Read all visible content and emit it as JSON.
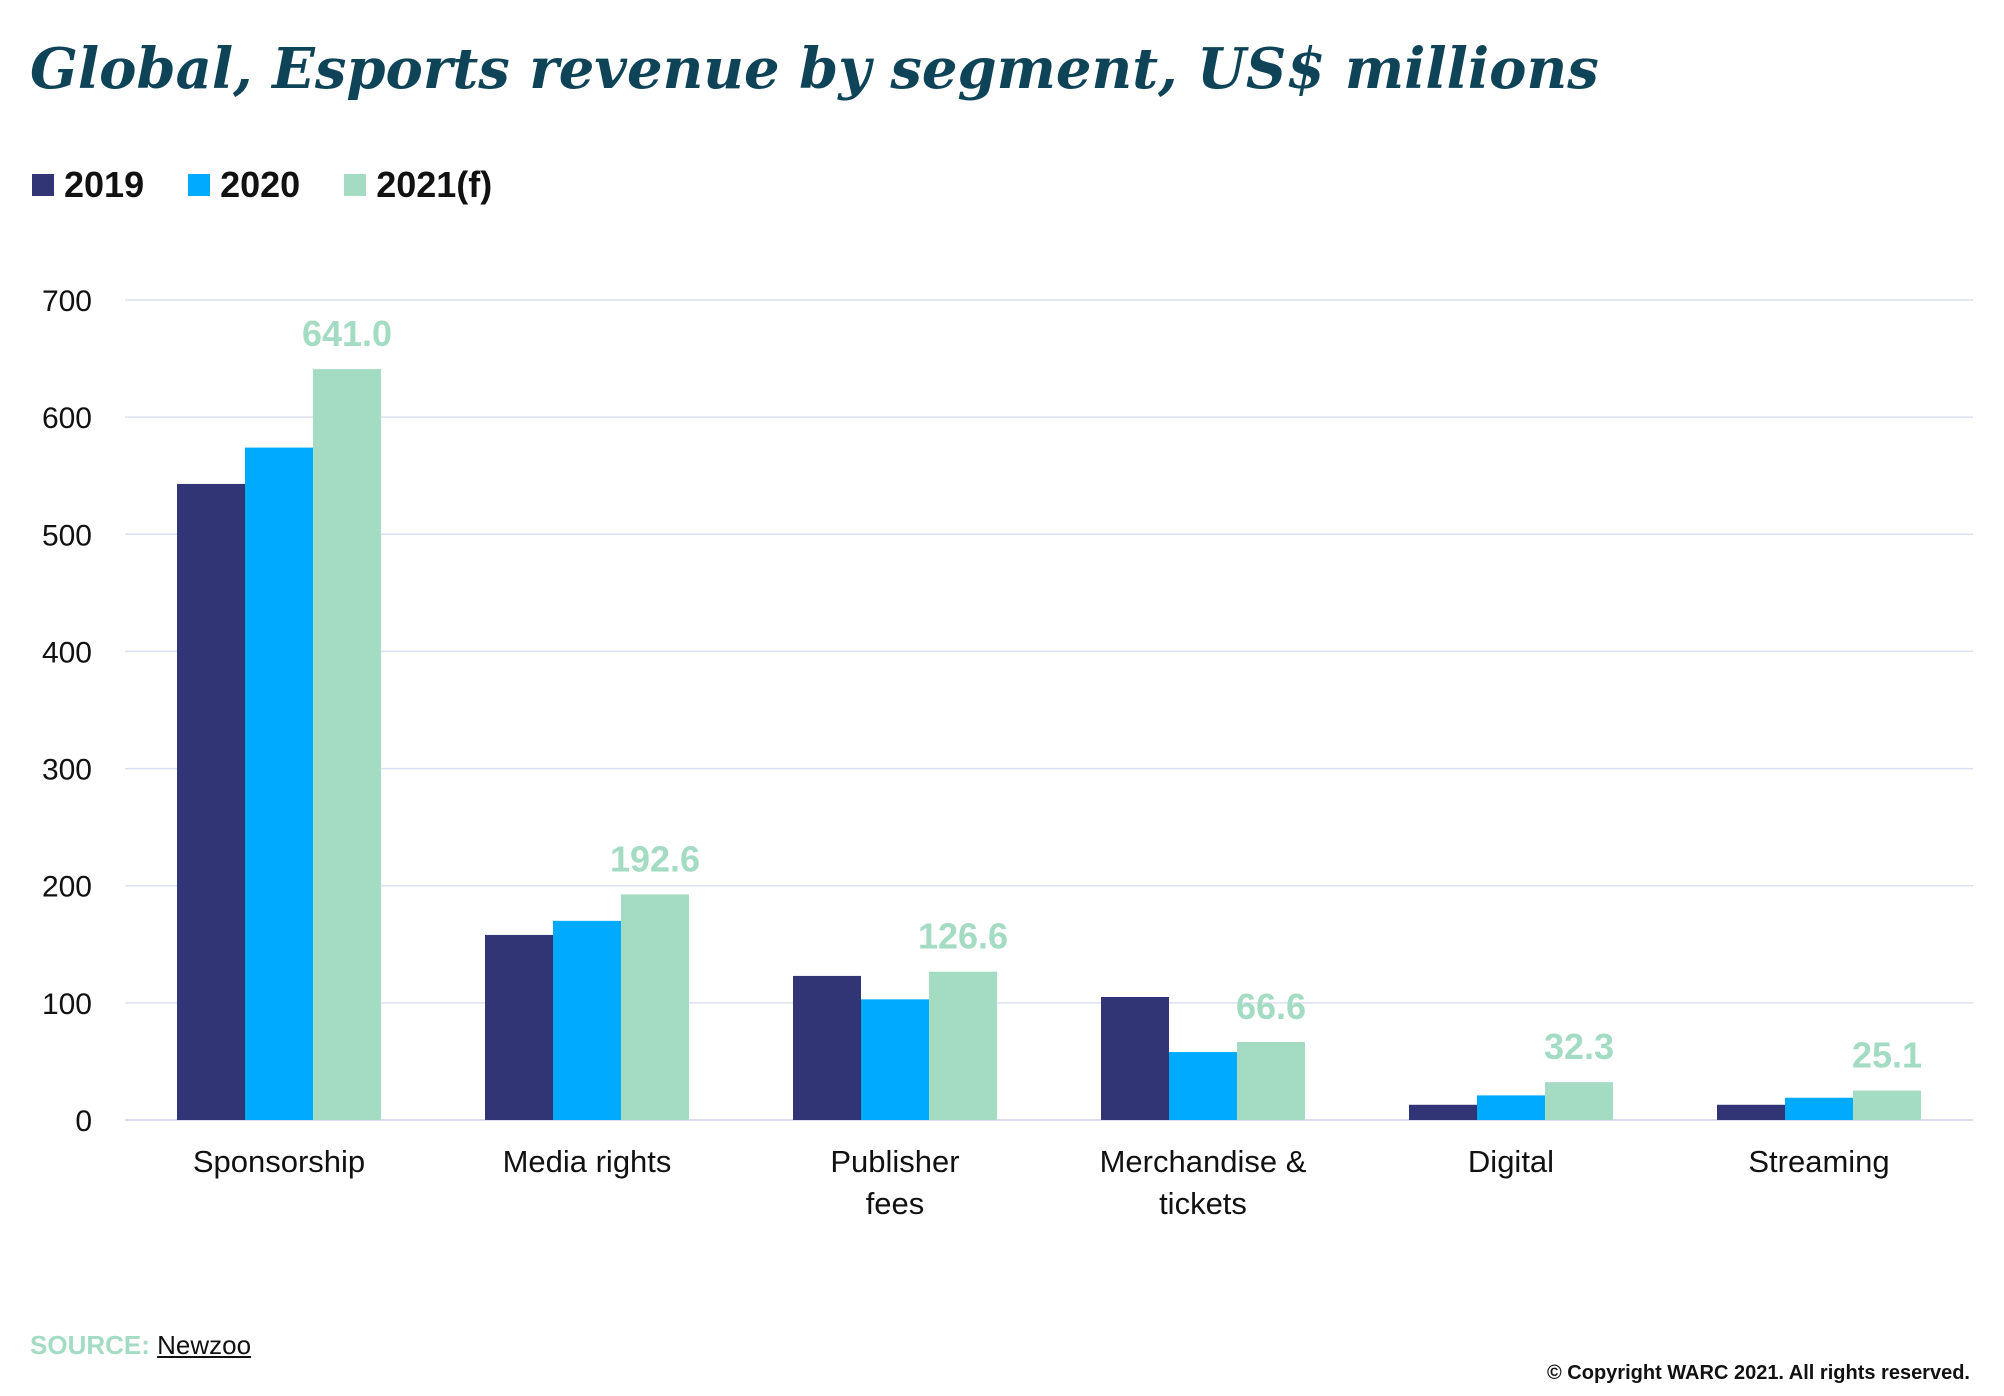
{
  "title": "Global, Esports revenue by segment, US$ millions",
  "legend": [
    {
      "label": "2019",
      "color": "#313475"
    },
    {
      "label": "2020",
      "color": "#00abff"
    },
    {
      "label": "2021(f)",
      "color": "#a3dbc3"
    }
  ],
  "source": {
    "label": "SOURCE:",
    "name": "Newzoo"
  },
  "copyright": "© Copyright WARC 2021. All rights reserved.",
  "chart_data": {
    "type": "bar",
    "title": "Global, Esports revenue by segment, US$ millions",
    "xlabel": "",
    "ylabel": "",
    "ylim": [
      0,
      700
    ],
    "yticks": [
      0,
      100,
      200,
      300,
      400,
      500,
      600,
      700
    ],
    "grid": true,
    "legend_position": "top-left",
    "categories": [
      [
        "Sponsorship"
      ],
      [
        "Media rights"
      ],
      [
        "Publisher",
        "fees"
      ],
      [
        "Merchandise &",
        "tickets"
      ],
      [
        "Digital"
      ],
      [
        "Streaming"
      ]
    ],
    "series": [
      {
        "name": "2019",
        "color": "#313475",
        "values": [
          543,
          158,
          123,
          105,
          13,
          13
        ]
      },
      {
        "name": "2020",
        "color": "#00abff",
        "values": [
          574,
          170,
          103,
          58,
          21,
          19
        ]
      },
      {
        "name": "2021(f)",
        "color": "#a3dbc3",
        "values": [
          641.0,
          192.6,
          126.6,
          66.6,
          32.3,
          25.1
        ],
        "data_labels": [
          "641.0",
          "192.6",
          "126.6",
          "66.6",
          "32.3",
          "25.1"
        ]
      }
    ]
  }
}
